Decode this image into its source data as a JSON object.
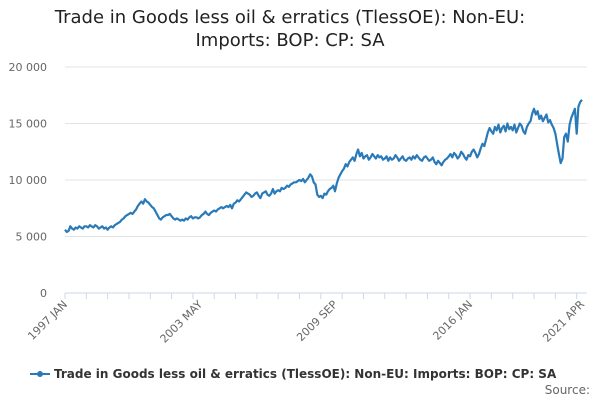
{
  "chart_data": {
    "type": "line",
    "title": "Trade in Goods less oil & erratics (TlessOE): Non-EU: Imports: BOP: CP: SA",
    "source": "Source:",
    "categories": [
      "1997 JAN",
      null,
      null,
      null,
      null,
      null,
      null,
      null,
      null,
      null,
      null,
      null,
      null,
      null,
      null,
      null,
      null,
      null,
      null,
      null,
      null,
      null,
      null,
      null,
      null,
      null,
      null,
      null,
      null,
      null,
      null,
      null,
      null,
      null,
      null,
      null,
      null,
      null,
      null,
      null,
      null,
      null,
      null,
      null,
      null,
      null,
      null,
      null,
      null,
      null,
      null,
      null,
      null,
      null,
      null,
      null,
      null,
      null,
      null,
      null,
      null,
      null,
      null,
      null,
      null,
      null,
      null,
      null,
      null,
      null,
      null,
      null,
      null,
      null,
      null,
      null,
      "2003 MAY",
      null,
      null,
      null,
      null,
      null,
      null,
      null,
      null,
      null,
      null,
      null,
      null,
      null,
      null,
      null,
      null,
      null,
      null,
      null,
      null,
      null,
      null,
      null,
      null,
      null,
      null,
      null,
      null,
      null,
      null,
      null,
      null,
      null,
      null,
      null,
      null,
      null,
      null,
      null,
      null,
      null,
      null,
      null,
      null,
      null,
      null,
      null,
      null,
      null,
      null,
      null,
      null,
      null,
      null,
      null,
      null,
      null,
      null,
      null,
      null,
      null,
      null,
      null,
      null,
      null,
      null,
      null,
      null,
      null,
      null,
      null,
      null,
      null,
      null,
      null,
      "2009 SEP",
      null,
      null,
      null,
      null,
      null,
      null,
      null,
      null,
      null,
      null,
      null,
      null,
      null,
      null,
      null,
      null,
      null,
      null,
      null,
      null,
      null,
      null,
      null,
      null,
      null,
      null,
      null,
      null,
      null,
      null,
      null,
      null,
      null,
      null,
      null,
      null,
      null,
      null,
      null,
      null,
      null,
      null,
      null,
      null,
      null,
      null,
      null,
      null,
      null,
      null,
      null,
      null,
      null,
      null,
      null,
      null,
      null,
      null,
      null,
      null,
      null,
      null,
      null,
      null,
      null,
      null,
      null,
      null,
      null,
      null,
      null,
      null,
      null,
      null,
      null,
      "2016 JAN",
      null,
      null,
      null,
      null,
      null,
      null,
      null,
      null,
      null,
      null,
      null,
      null,
      null,
      null,
      null,
      null,
      null,
      null,
      null,
      null,
      null,
      null,
      null,
      null,
      null,
      null,
      null,
      null,
      null,
      null,
      null,
      null,
      null,
      null,
      null,
      null,
      null,
      null,
      null,
      null,
      null,
      null,
      null,
      null,
      null,
      null,
      null,
      null,
      null,
      null,
      null,
      null,
      null,
      null,
      null,
      null,
      null,
      null,
      null,
      null,
      null,
      null,
      "2021 APR"
    ],
    "series": [
      {
        "name": "Trade in Goods less oil & erratics (TlessOE): Non-EU: Imports: BOP: CP: SA",
        "color": "#2a7ab8",
        "values": [
          5600,
          5400,
          5500,
          5900,
          5700,
          5600,
          5800,
          5700,
          5900,
          5800,
          5700,
          5900,
          5900,
          5800,
          6000,
          5900,
          5800,
          6000,
          5900,
          5700,
          5800,
          5900,
          5700,
          5800,
          5600,
          5800,
          5900,
          5800,
          6000,
          6100,
          6200,
          6300,
          6500,
          6600,
          6800,
          6900,
          7000,
          7100,
          7000,
          7200,
          7400,
          7700,
          7900,
          8100,
          7900,
          8300,
          8100,
          8000,
          7800,
          7600,
          7500,
          7200,
          6900,
          6600,
          6500,
          6700,
          6800,
          6900,
          6900,
          7000,
          6800,
          6600,
          6500,
          6600,
          6500,
          6400,
          6500,
          6400,
          6600,
          6500,
          6700,
          6800,
          6600,
          6700,
          6700,
          6600,
          6700,
          6900,
          7000,
          7200,
          7000,
          6900,
          7100,
          7200,
          7300,
          7200,
          7400,
          7500,
          7600,
          7500,
          7600,
          7700,
          7600,
          7800,
          7500,
          7900,
          8000,
          8200,
          8100,
          8300,
          8500,
          8700,
          8900,
          8800,
          8700,
          8500,
          8600,
          8800,
          8900,
          8600,
          8400,
          8800,
          8900,
          9000,
          8700,
          8600,
          8800,
          9200,
          8800,
          9000,
          9100,
          9000,
          9300,
          9200,
          9300,
          9500,
          9400,
          9600,
          9700,
          9800,
          9800,
          9900,
          10000,
          9900,
          10100,
          9800,
          10000,
          10200,
          10500,
          10300,
          9800,
          9600,
          8700,
          8500,
          8600,
          8400,
          8800,
          8700,
          9000,
          9200,
          9300,
          9500,
          9000,
          9700,
          10200,
          10500,
          10800,
          11000,
          11400,
          11200,
          11600,
          11800,
          12000,
          11700,
          12300,
          12700,
          12100,
          12400,
          11900,
          12100,
          12200,
          11800,
          12000,
          12300,
          12100,
          11900,
          12200,
          12000,
          12100,
          11800,
          11900,
          12100,
          11700,
          12000,
          11800,
          11900,
          12200,
          12000,
          11700,
          11900,
          12100,
          11800,
          11700,
          11900,
          12000,
          11800,
          12100,
          11900,
          12200,
          12000,
          11800,
          11700,
          12000,
          12100,
          11900,
          11700,
          11800,
          12000,
          11600,
          11400,
          11700,
          11500,
          11300,
          11600,
          11800,
          11900,
          12100,
          12300,
          12000,
          12400,
          12200,
          11900,
          12100,
          12500,
          12300,
          12000,
          11800,
          12200,
          12100,
          12500,
          12700,
          12400,
          12000,
          12300,
          12800,
          13200,
          13000,
          13600,
          14200,
          14600,
          14300,
          14100,
          14700,
          14400,
          14900,
          14200,
          14600,
          14800,
          14300,
          15000,
          14500,
          14700,
          14400,
          14900,
          14200,
          14600,
          15000,
          14800,
          14300,
          14100,
          14700,
          15000,
          15200,
          15900,
          16300,
          15800,
          16100,
          15400,
          15700,
          15200,
          15500,
          15800,
          15100,
          15300,
          14900,
          14600,
          14100,
          13200,
          12300,
          11500,
          11900,
          13800,
          14100,
          13400,
          14900,
          15500,
          15900,
          16300,
          14100,
          16500,
          16900,
          17100
        ]
      }
    ],
    "ylim": [
      0,
      20000
    ],
    "yticks": [
      0,
      {
        "value": 5000,
        "label": "5 000"
      },
      {
        "value": 10000,
        "label": "10 000"
      },
      {
        "value": 15000,
        "label": "15 000"
      },
      {
        "value": 20000,
        "label": "20 000"
      }
    ],
    "grid": true
  }
}
